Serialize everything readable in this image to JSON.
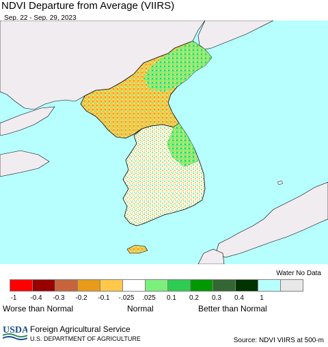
{
  "header": {
    "title": "NDVI Departure from Average (VIIRS)",
    "date_range": "Sep. 22 - Sep. 29, 2023"
  },
  "map": {
    "water_color": "#b7ffff",
    "land_nodata_color": "#f0ecf0",
    "dominant_land_colors": [
      "#7cf07c",
      "#2ecc52",
      "#ffc84a",
      "#e89a1a",
      "#ffffff"
    ]
  },
  "legend": {
    "nodata_label": "Water No Data",
    "colors": [
      "#ff0000",
      "#990000",
      "#c8643c",
      "#e89a1a",
      "#ffc84a",
      "#ffffff",
      "#7cf07c",
      "#2ecc52",
      "#009900",
      "#336633",
      "#003300"
    ],
    "nodata_colors": [
      "#b7ffff",
      "#e8e8e8"
    ],
    "ticks": [
      "-1",
      "-0.4",
      "-0.3",
      "-0.2",
      "-0.1",
      "-.025",
      ".025",
      "0.1",
      "0.2",
      "0.3",
      "0.4",
      "1"
    ],
    "categories": {
      "worse": "Worse than Normal",
      "normal": "Normal",
      "better": "Better than Normal"
    }
  },
  "footer": {
    "logo_text": "USDA",
    "org": "Foreign Agricultural Service",
    "dept": "U.S. DEPARTMENT OF AGRICULTURE",
    "source": "Source: NDVI VIIRS at 500-m"
  }
}
